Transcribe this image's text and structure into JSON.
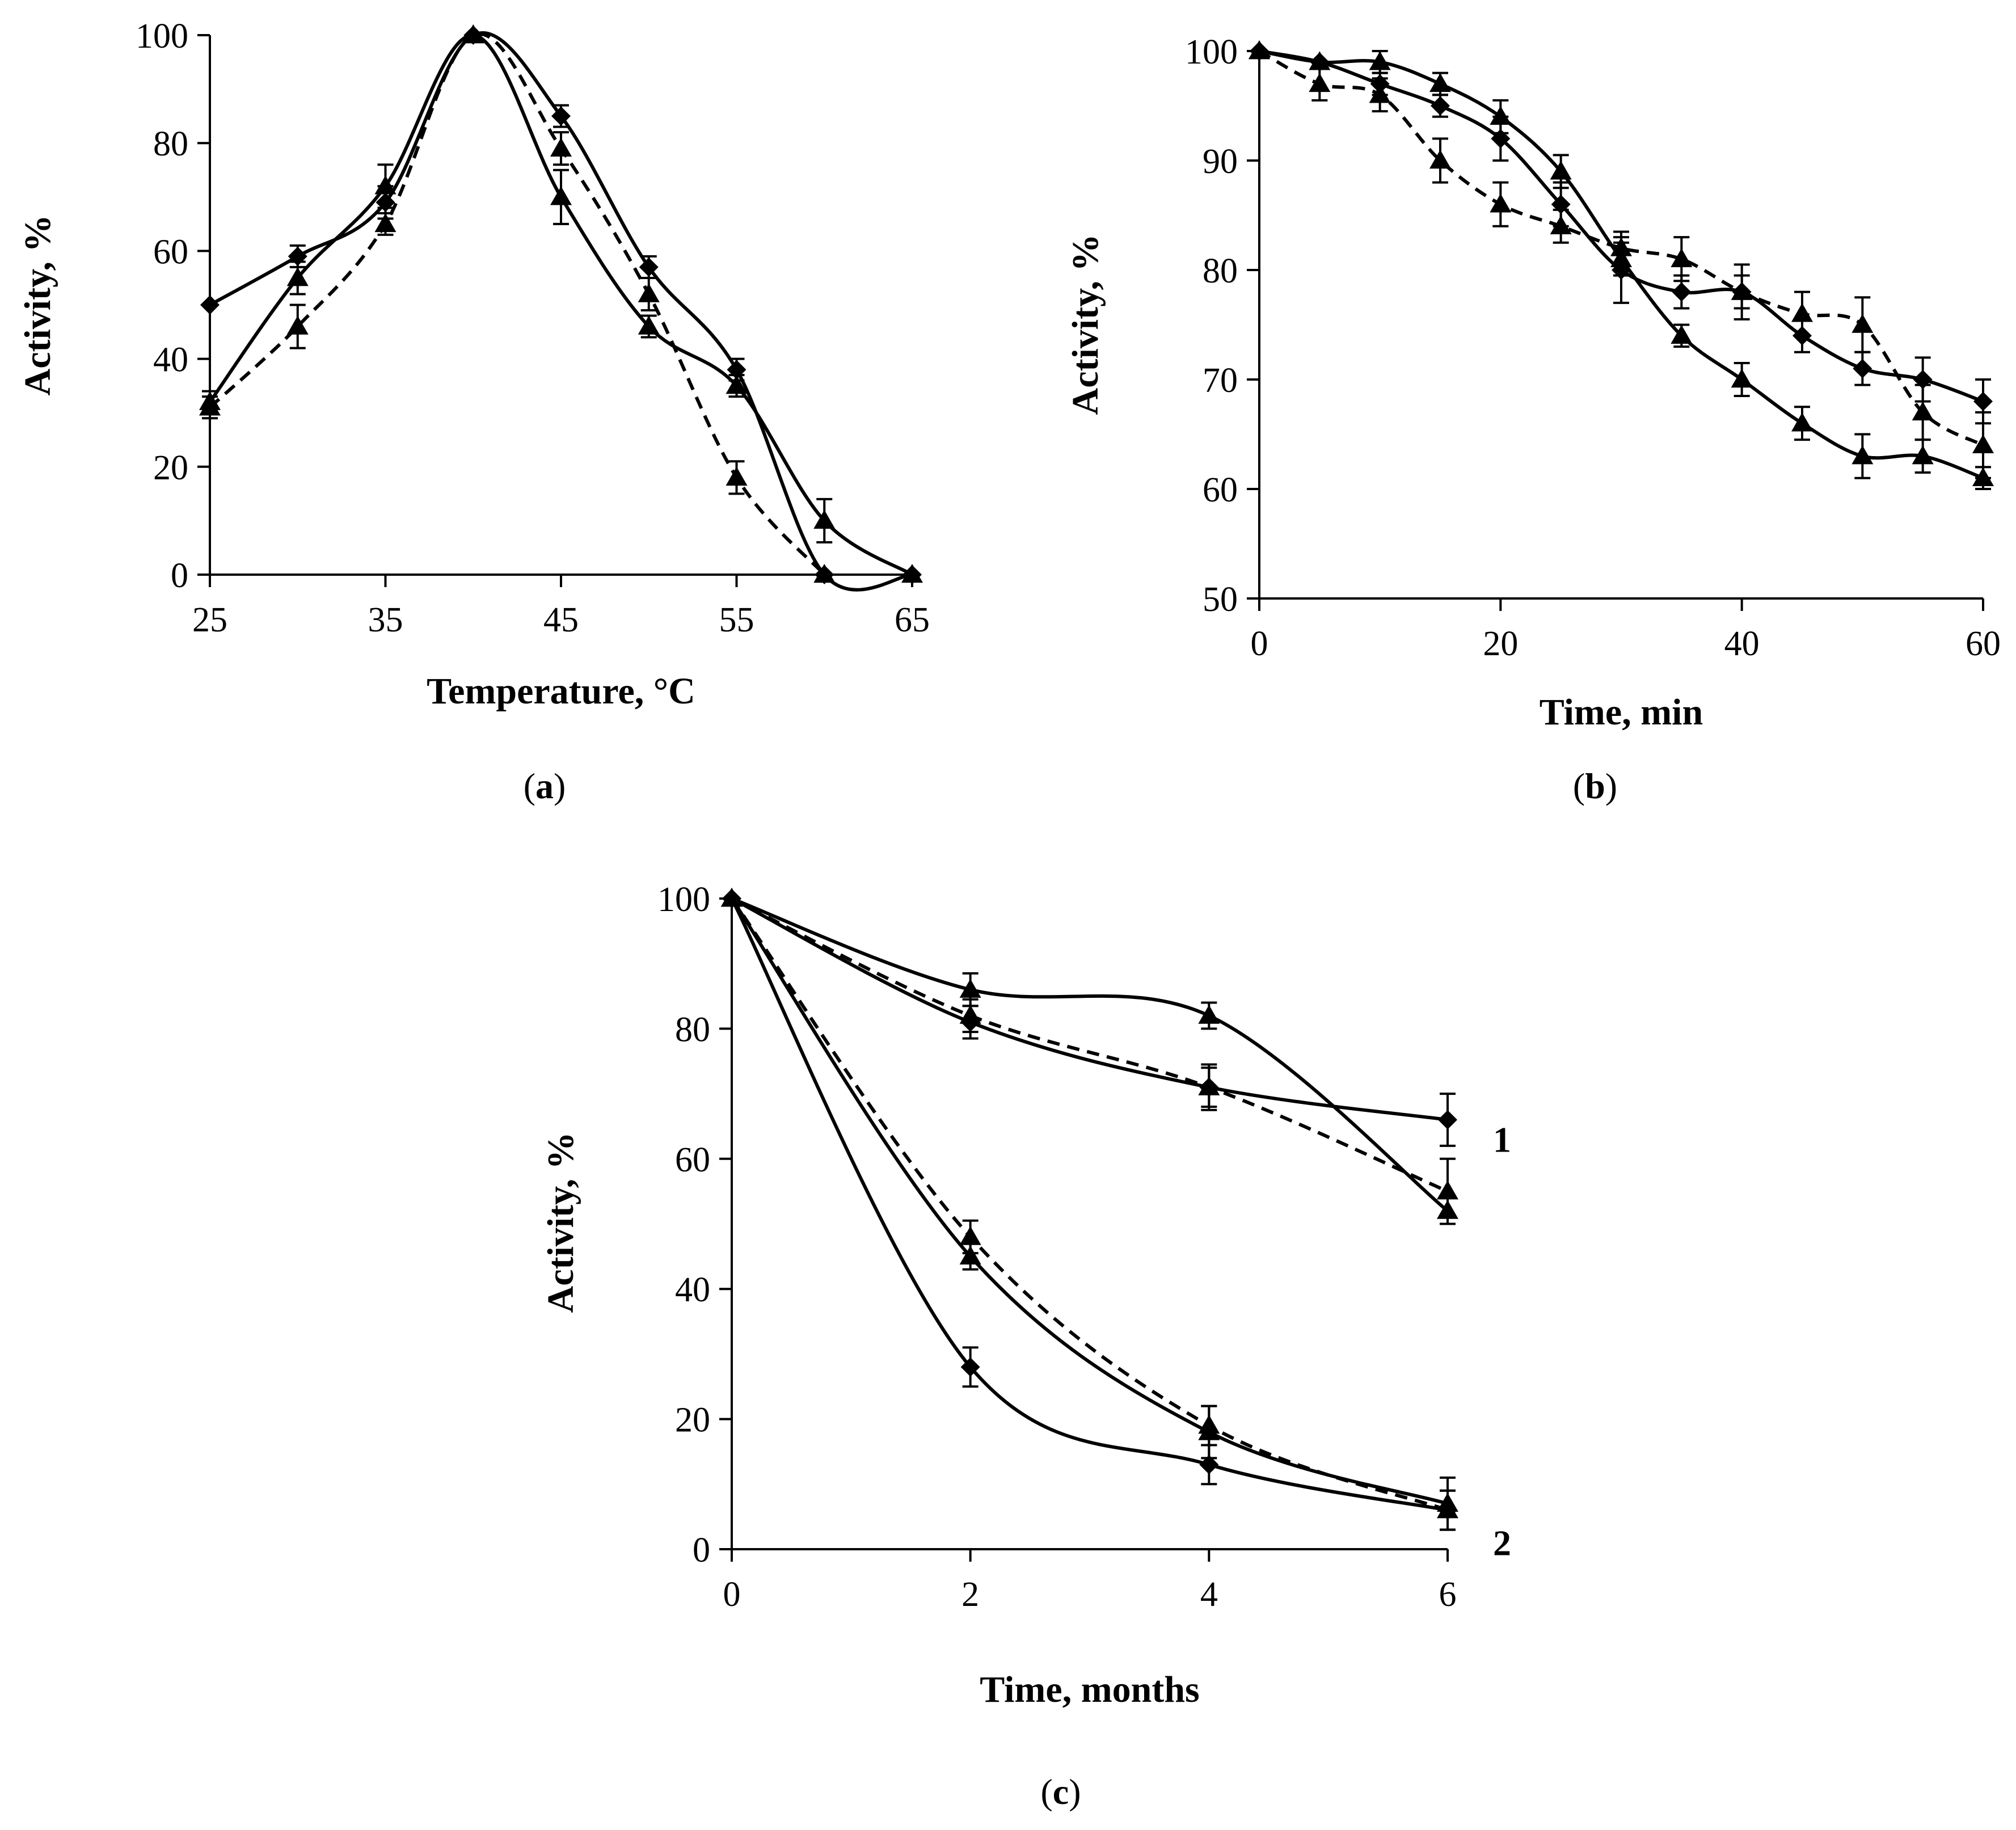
{
  "chart_data": [
    {
      "id": "a",
      "type": "line",
      "panel_label": "(a)",
      "panel_label_letter": "a",
      "xlabel": "Temperature, °C",
      "ylabel": "Activity, %",
      "xlim": [
        25,
        65
      ],
      "ylim": [
        0,
        100
      ],
      "xticks": [
        25,
        35,
        45,
        55,
        65
      ],
      "yticks": [
        0,
        20,
        40,
        60,
        80,
        100
      ],
      "grid": false,
      "series": [
        {
          "name": "diamond-solid",
          "marker": "diamond",
          "style": "solid",
          "points": [
            [
              25,
              50
            ],
            [
              30,
              59
            ],
            [
              35,
              69
            ],
            [
              40,
              100
            ],
            [
              45,
              85
            ],
            [
              50,
              57
            ],
            [
              55,
              38
            ],
            [
              60,
              0
            ],
            [
              65,
              0
            ]
          ],
          "errors": [
            0,
            2,
            3,
            0,
            2,
            2,
            2,
            0,
            0
          ]
        },
        {
          "name": "triangle-solid",
          "marker": "triangle",
          "style": "solid",
          "points": [
            [
              25,
              32
            ],
            [
              30,
              55
            ],
            [
              35,
              72
            ],
            [
              40,
              100
            ],
            [
              45,
              70
            ],
            [
              50,
              46
            ],
            [
              55,
              35
            ],
            [
              60,
              10
            ],
            [
              65,
              0
            ]
          ],
          "errors": [
            2,
            3,
            4,
            0,
            5,
            2,
            2,
            4,
            0
          ]
        },
        {
          "name": "triangle-dashed",
          "marker": "triangle",
          "style": "dashed",
          "points": [
            [
              25,
              31
            ],
            [
              30,
              46
            ],
            [
              35,
              65
            ],
            [
              40,
              100
            ],
            [
              45,
              79
            ],
            [
              50,
              52
            ],
            [
              55,
              18
            ],
            [
              60,
              0
            ]
          ],
          "errors": [
            2,
            4,
            2,
            0,
            3,
            3,
            3,
            0
          ]
        }
      ]
    },
    {
      "id": "b",
      "type": "line",
      "panel_label": "(b)",
      "panel_label_letter": "b",
      "xlabel": "Time, min",
      "ylabel": "Activity, %",
      "xlim": [
        0,
        60
      ],
      "ylim": [
        50,
        100
      ],
      "xticks": [
        0,
        20,
        40,
        60
      ],
      "yticks": [
        50,
        60,
        70,
        80,
        90,
        100
      ],
      "grid": false,
      "series": [
        {
          "name": "diamond-solid",
          "marker": "diamond",
          "style": "solid",
          "points": [
            [
              0,
              100
            ],
            [
              5,
              99
            ],
            [
              10,
              97
            ],
            [
              15,
              95
            ],
            [
              20,
              92
            ],
            [
              25,
              86
            ],
            [
              30,
              80
            ],
            [
              35,
              78
            ],
            [
              40,
              78
            ],
            [
              45,
              74
            ],
            [
              50,
              71
            ],
            [
              55,
              70
            ],
            [
              60,
              68
            ]
          ],
          "errors": [
            0,
            0,
            1,
            1,
            2,
            2,
            3,
            1.5,
            1.5,
            1.5,
            1.5,
            2,
            2
          ]
        },
        {
          "name": "triangle-solid",
          "marker": "triangle",
          "style": "solid",
          "points": [
            [
              0,
              100
            ],
            [
              5,
              99
            ],
            [
              10,
              99
            ],
            [
              15,
              97
            ],
            [
              20,
              94
            ],
            [
              25,
              89
            ],
            [
              30,
              81
            ],
            [
              35,
              74
            ],
            [
              40,
              70
            ],
            [
              45,
              66
            ],
            [
              50,
              63
            ],
            [
              55,
              63
            ],
            [
              60,
              61
            ]
          ],
          "errors": [
            0,
            0,
            1,
            1,
            1.5,
            1.5,
            1.5,
            1,
            1.5,
            1.5,
            2,
            1.5,
            1
          ]
        },
        {
          "name": "triangle-dashed",
          "marker": "triangle",
          "style": "dashed",
          "points": [
            [
              0,
              100
            ],
            [
              5,
              97
            ],
            [
              10,
              96
            ],
            [
              15,
              90
            ],
            [
              20,
              86
            ],
            [
              25,
              84
            ],
            [
              30,
              82
            ],
            [
              35,
              81
            ],
            [
              40,
              78
            ],
            [
              45,
              76
            ],
            [
              50,
              75
            ],
            [
              55,
              67
            ],
            [
              60,
              64
            ]
          ],
          "errors": [
            0,
            1.5,
            1.5,
            2,
            2,
            1.5,
            1.5,
            2,
            2.5,
            2,
            2.5,
            2.5,
            3
          ]
        }
      ]
    },
    {
      "id": "c",
      "type": "line",
      "panel_label": "(c)",
      "panel_label_letter": "c",
      "xlabel": "Time, months",
      "ylabel": "Activity, %",
      "xlim": [
        0,
        6
      ],
      "ylim": [
        0,
        100
      ],
      "xticks": [
        0,
        2,
        4,
        6
      ],
      "yticks": [
        0,
        20,
        40,
        60,
        80,
        100
      ],
      "grid": false,
      "curve_labels": [
        {
          "text": "1",
          "x": 6,
          "y": 63
        },
        {
          "text": "2",
          "x": 6,
          "y": 1
        }
      ],
      "series": [
        {
          "name": "g1-diamond-solid",
          "marker": "diamond",
          "style": "solid",
          "points": [
            [
              0,
              100
            ],
            [
              2,
              81
            ],
            [
              4,
              71
            ],
            [
              6,
              66
            ]
          ],
          "errors": [
            0,
            2.5,
            3,
            4
          ]
        },
        {
          "name": "g1-triangle-solid",
          "marker": "triangle",
          "style": "solid",
          "points": [
            [
              0,
              100
            ],
            [
              2,
              86
            ],
            [
              4,
              82
            ],
            [
              6,
              52
            ]
          ],
          "errors": [
            0,
            2.5,
            2,
            2
          ]
        },
        {
          "name": "g1-triangle-dashed",
          "marker": "triangle",
          "style": "dashed",
          "points": [
            [
              0,
              100
            ],
            [
              2,
              82
            ],
            [
              4,
              71
            ],
            [
              6,
              55
            ]
          ],
          "errors": [
            0,
            2.5,
            3.5,
            5
          ]
        },
        {
          "name": "g2-diamond-solid",
          "marker": "diamond",
          "style": "solid",
          "points": [
            [
              0,
              100
            ],
            [
              2,
              28
            ],
            [
              4,
              13
            ],
            [
              6,
              6
            ]
          ],
          "errors": [
            0,
            3,
            3,
            3
          ]
        },
        {
          "name": "g2-triangle-solid",
          "marker": "triangle",
          "style": "solid",
          "points": [
            [
              0,
              100
            ],
            [
              2,
              45
            ],
            [
              4,
              18
            ],
            [
              6,
              7
            ]
          ],
          "errors": [
            0,
            2,
            4,
            4
          ]
        },
        {
          "name": "g2-triangle-dashed",
          "marker": "triangle",
          "style": "dashed",
          "points": [
            [
              0,
              100
            ],
            [
              2,
              48
            ],
            [
              4,
              19
            ],
            [
              6,
              6
            ]
          ],
          "errors": [
            0,
            2.5,
            3,
            3
          ]
        }
      ]
    }
  ]
}
